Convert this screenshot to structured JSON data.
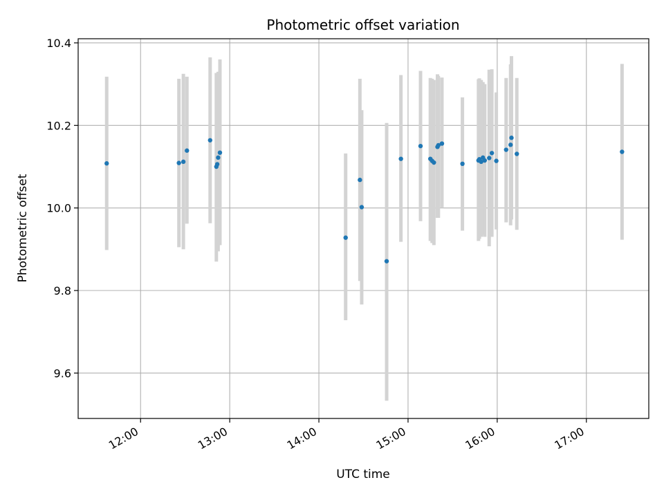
{
  "chart_data": {
    "type": "scatter",
    "title": "Photometric offset variation",
    "xlabel": "UTC time",
    "ylabel": "Photometric offset",
    "x_unit": "hours UTC (decimal)",
    "xlim": [
      11.3,
      17.7
    ],
    "ylim": [
      9.49,
      10.41
    ],
    "x_ticks": [
      {
        "value": 12,
        "label": "12:00"
      },
      {
        "value": 13,
        "label": "13:00"
      },
      {
        "value": 14,
        "label": "14:00"
      },
      {
        "value": 15,
        "label": "15:00"
      },
      {
        "value": 16,
        "label": "16:00"
      },
      {
        "value": 17,
        "label": "17:00"
      }
    ],
    "y_ticks": [
      {
        "value": 9.6,
        "label": "9.6"
      },
      {
        "value": 9.8,
        "label": "9.8"
      },
      {
        "value": 10.0,
        "label": "10.0"
      },
      {
        "value": 10.2,
        "label": "10.2"
      },
      {
        "value": 10.4,
        "label": "10.4"
      }
    ],
    "grid": true,
    "point_color": "#1f77b4",
    "errorbar_color": "#d3d3d3",
    "points": [
      {
        "x": 11.62,
        "y": 10.108,
        "lo": 9.898,
        "hi": 10.318
      },
      {
        "x": 12.43,
        "y": 10.109,
        "lo": 9.905,
        "hi": 10.313
      },
      {
        "x": 12.48,
        "y": 10.112,
        "lo": 9.9,
        "hi": 10.325
      },
      {
        "x": 12.52,
        "y": 10.139,
        "lo": 9.962,
        "hi": 10.318
      },
      {
        "x": 12.78,
        "y": 10.164,
        "lo": 9.963,
        "hi": 10.365
      },
      {
        "x": 12.85,
        "y": 10.1,
        "lo": 9.87,
        "hi": 10.327
      },
      {
        "x": 12.87,
        "y": 10.122,
        "lo": 9.895,
        "hi": 10.33
      },
      {
        "x": 12.89,
        "y": 10.134,
        "lo": 9.91,
        "hi": 10.36
      },
      {
        "x": 12.86,
        "y": 10.106,
        "lo": 9.905,
        "hi": 10.31
      },
      {
        "x": 14.3,
        "y": 9.928,
        "lo": 9.728,
        "hi": 10.132
      },
      {
        "x": 14.46,
        "y": 10.068,
        "lo": 9.823,
        "hi": 10.313
      },
      {
        "x": 14.48,
        "y": 10.002,
        "lo": 9.766,
        "hi": 10.237
      },
      {
        "x": 14.76,
        "y": 9.871,
        "lo": 9.533,
        "hi": 10.206
      },
      {
        "x": 14.92,
        "y": 10.119,
        "lo": 9.918,
        "hi": 10.322
      },
      {
        "x": 15.14,
        "y": 10.15,
        "lo": 9.968,
        "hi": 10.332
      },
      {
        "x": 15.25,
        "y": 10.119,
        "lo": 9.92,
        "hi": 10.315
      },
      {
        "x": 15.27,
        "y": 10.114,
        "lo": 9.915,
        "hi": 10.313
      },
      {
        "x": 15.29,
        "y": 10.11,
        "lo": 9.91,
        "hi": 10.31
      },
      {
        "x": 15.33,
        "y": 10.148,
        "lo": 9.976,
        "hi": 10.324
      },
      {
        "x": 15.34,
        "y": 10.152,
        "lo": 9.976,
        "hi": 10.32
      },
      {
        "x": 15.38,
        "y": 10.156,
        "lo": 10.0,
        "hi": 10.316
      },
      {
        "x": 15.61,
        "y": 10.107,
        "lo": 9.945,
        "hi": 10.268
      },
      {
        "x": 15.79,
        "y": 10.115,
        "lo": 9.92,
        "hi": 10.312
      },
      {
        "x": 15.8,
        "y": 10.118,
        "lo": 9.925,
        "hi": 10.314
      },
      {
        "x": 15.82,
        "y": 10.112,
        "lo": 9.93,
        "hi": 10.31
      },
      {
        "x": 15.84,
        "y": 10.122,
        "lo": 9.935,
        "hi": 10.305
      },
      {
        "x": 15.86,
        "y": 10.115,
        "lo": 9.93,
        "hi": 10.3
      },
      {
        "x": 15.91,
        "y": 10.121,
        "lo": 9.907,
        "hi": 10.335
      },
      {
        "x": 15.94,
        "y": 10.133,
        "lo": 9.93,
        "hi": 10.336
      },
      {
        "x": 15.99,
        "y": 10.114,
        "lo": 9.948,
        "hi": 10.28
      },
      {
        "x": 16.1,
        "y": 10.141,
        "lo": 9.965,
        "hi": 10.315
      },
      {
        "x": 16.15,
        "y": 10.153,
        "lo": 9.958,
        "hi": 10.348
      },
      {
        "x": 16.16,
        "y": 10.17,
        "lo": 9.972,
        "hi": 10.368
      },
      {
        "x": 16.22,
        "y": 10.131,
        "lo": 9.947,
        "hi": 10.315
      },
      {
        "x": 17.4,
        "y": 10.136,
        "lo": 9.923,
        "hi": 10.349
      }
    ]
  }
}
